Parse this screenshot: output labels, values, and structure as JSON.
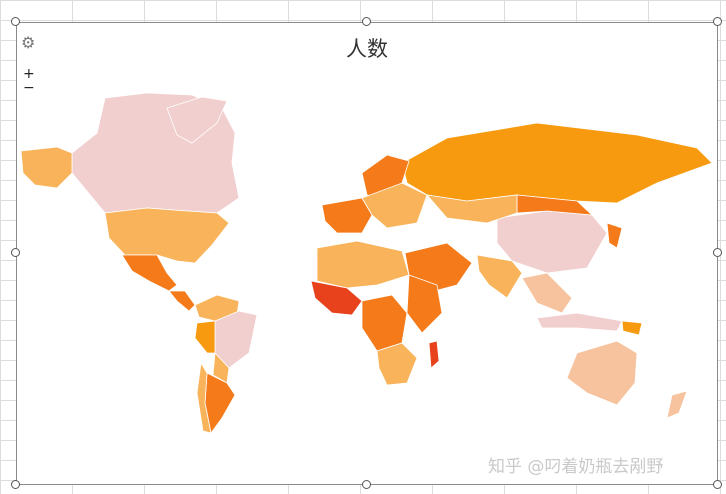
{
  "chart": {
    "title": "人数",
    "zoom_in": "+",
    "zoom_out": "−",
    "settings_icon": "gear-icon"
  },
  "colors": {
    "very_high": "#e8421c",
    "high": "#f47a1a",
    "mid_high": "#f79a10",
    "mid": "#f9b35b",
    "low": "#f6c39e",
    "very_low": "#f2cfcf"
  },
  "chart_data": {
    "type": "choropleth",
    "title": "人数",
    "legend": "none",
    "regions": [
      {
        "name": "Canada",
        "level": "very_low"
      },
      {
        "name": "Greenland",
        "level": "very_low"
      },
      {
        "name": "Alaska",
        "level": "mid"
      },
      {
        "name": "United States",
        "level": "mid"
      },
      {
        "name": "Mexico",
        "level": "high"
      },
      {
        "name": "Central America",
        "level": "high"
      },
      {
        "name": "Colombia / Venezuela",
        "level": "mid"
      },
      {
        "name": "Brazil",
        "level": "very_low"
      },
      {
        "name": "Peru",
        "level": "mid_high"
      },
      {
        "name": "Bolivia / Paraguay",
        "level": "mid"
      },
      {
        "name": "Argentina",
        "level": "high"
      },
      {
        "name": "Chile",
        "level": "mid"
      },
      {
        "name": "Russia",
        "level": "mid_high"
      },
      {
        "name": "China",
        "level": "very_low"
      },
      {
        "name": "Mongolia",
        "level": "high"
      },
      {
        "name": "Kazakhstan",
        "level": "mid"
      },
      {
        "name": "India",
        "level": "mid"
      },
      {
        "name": "Middle East",
        "level": "high"
      },
      {
        "name": "Scandinavia",
        "level": "high"
      },
      {
        "name": "Western Europe",
        "level": "high"
      },
      {
        "name": "Eastern Europe",
        "level": "mid"
      },
      {
        "name": "North Africa",
        "level": "mid"
      },
      {
        "name": "West Africa",
        "level": "very_high"
      },
      {
        "name": "Central Africa",
        "level": "high"
      },
      {
        "name": "East Africa",
        "level": "high"
      },
      {
        "name": "Southern Africa",
        "level": "mid"
      },
      {
        "name": "Madagascar",
        "level": "very_high"
      },
      {
        "name": "Southeast Asia",
        "level": "low"
      },
      {
        "name": "Japan / Korea",
        "level": "high"
      },
      {
        "name": "Indonesia",
        "level": "very_low"
      },
      {
        "name": "Australia",
        "level": "low"
      },
      {
        "name": "New Zealand",
        "level": "low"
      },
      {
        "name": "Papua New Guinea",
        "level": "mid_high"
      }
    ]
  },
  "watermark": "知乎 @叼着奶瓶去剐野"
}
